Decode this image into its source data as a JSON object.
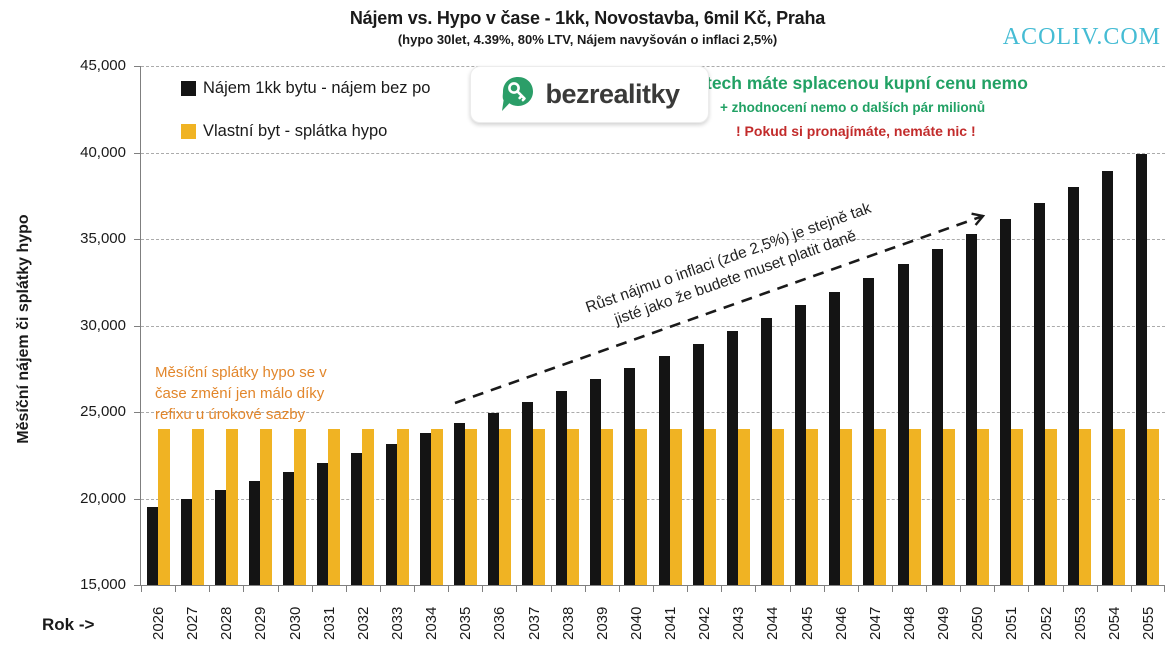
{
  "header": {
    "title": "Nájem vs. Hypo v čase - 1kk, Novostavba, 6mil Kč, Praha",
    "subtitle": "(hypo 30let, 4.39%, 80% LTV,  Nájem navyšován o inflaci 2,5%)",
    "watermark": "ACOLIV.COM"
  },
  "logo": {
    "text": "bezrealitky"
  },
  "legend": [
    {
      "label": "Nájem 1kk bytu - nájem bez po",
      "color": "#141414"
    },
    {
      "label": "Vlastní byt - splátka hypo",
      "color": "#f0b323"
    }
  ],
  "annotations": {
    "green_line1": "tech máte splacenou kupní cenu nemo",
    "green_line2": "+ zhodnocení nemo o dalších pár milionů",
    "red_line": "! Pokud si pronajímáte, nemáte nic !",
    "orange_note_lines": [
      "Měsíční splátky hypo se v",
      "čase změní jen málo díky",
      "refixu u úrokové sazby"
    ],
    "arrow_note_line1": "Růst nájmu o inflaci (zde 2,5%) je stejně tak",
    "arrow_note_line2": "jisté jako že budete muset platit daně"
  },
  "axes": {
    "y_title": "Měsíční nájem či splátky hypo",
    "x_title": "Rok ->",
    "y_tick_labels": [
      "45,000",
      "40,000",
      "35,000",
      "30,000",
      "25,000",
      "20,000",
      "15,000"
    ]
  },
  "chart_data": {
    "type": "bar",
    "title": "Nájem vs. Hypo v čase - 1kk, Novostavba, 6mil Kč, Praha",
    "xlabel": "Rok ->",
    "ylabel": "Měsíční nájem či splátky hypo",
    "ylim": [
      15000,
      45000
    ],
    "y_step": 5000,
    "grid": "horizontal-dashed",
    "legend_position": "top-left-inside",
    "categories": [
      "2026",
      "2027",
      "2028",
      "2029",
      "2030",
      "2031",
      "2032",
      "2033",
      "2034",
      "2035",
      "2036",
      "2037",
      "2038",
      "2039",
      "2040",
      "2041",
      "2042",
      "2043",
      "2044",
      "2045",
      "2046",
      "2047",
      "2048",
      "2049",
      "2050",
      "2051",
      "2052",
      "2053",
      "2054",
      "2055"
    ],
    "series": [
      {
        "name": "Nájem 1kk bytu - nájem bez po",
        "color": "#141414",
        "values": [
          19500,
          19988,
          20487,
          21000,
          21524,
          22063,
          22614,
          23180,
          23759,
          24353,
          24962,
          25586,
          26225,
          26881,
          27553,
          28242,
          28948,
          29672,
          30413,
          31174,
          31953,
          32752,
          33571,
          34410,
          35270,
          36152,
          37056,
          37982,
          38932,
          39905
        ]
      },
      {
        "name": "Vlastní byt - splátka hypo",
        "color": "#f0b323",
        "values": [
          24000,
          24000,
          24000,
          24000,
          24000,
          24000,
          24000,
          24000,
          24000,
          24000,
          24000,
          24000,
          24000,
          24000,
          24000,
          24000,
          24000,
          24000,
          24000,
          24000,
          24000,
          24000,
          24000,
          24000,
          24000,
          24000,
          24000,
          24000,
          24000,
          24000
        ]
      }
    ]
  }
}
